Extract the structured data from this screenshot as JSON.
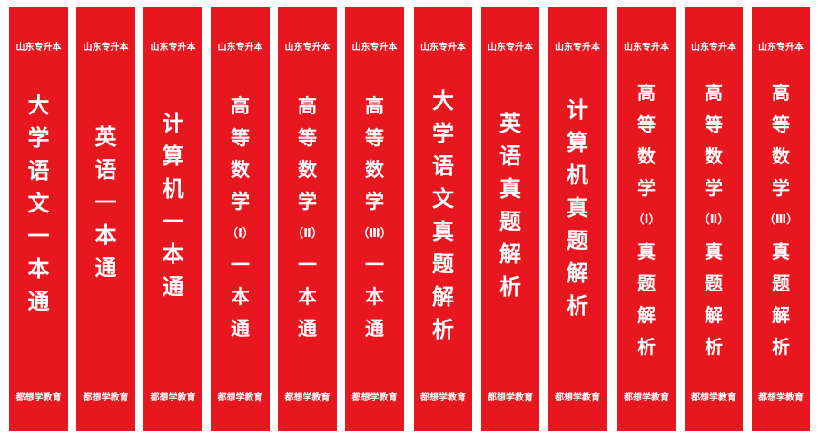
{
  "publisher_top": "山东专升本",
  "publisher_bottom": "都想学教育",
  "spines": [
    {
      "title": "大学语文一本通"
    },
    {
      "title": "英语一本通"
    },
    {
      "title": "计算机一本通"
    },
    {
      "title": "高等数学（Ⅰ）一本通"
    },
    {
      "title": "高等数学（Ⅱ）一本通"
    },
    {
      "title": "高等数学（Ⅲ）一本通"
    },
    {
      "title": "大学语文真题解析"
    },
    {
      "title": "英语真题解析"
    },
    {
      "title": "计算机真题解析"
    },
    {
      "title": "高等数学（Ⅰ）真题解析"
    },
    {
      "title": "高等数学（Ⅱ）真题解析"
    },
    {
      "title": "高等数学（Ⅲ）真题解析"
    }
  ]
}
